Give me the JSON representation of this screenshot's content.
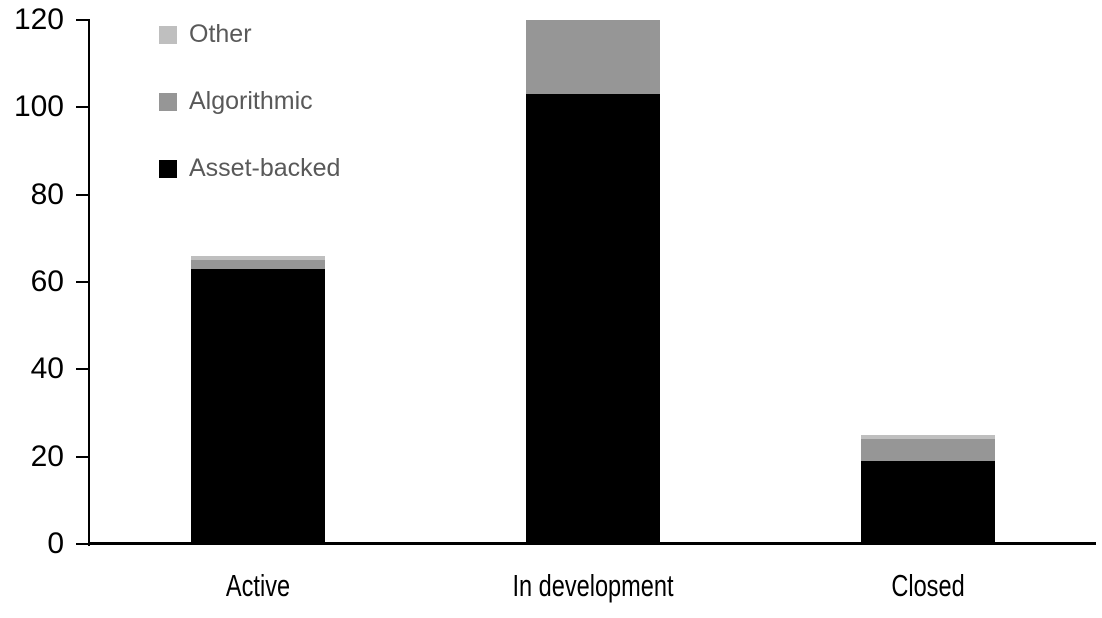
{
  "chart_data": {
    "type": "bar",
    "stacked": true,
    "title": "",
    "xlabel": "",
    "ylabel": "",
    "categories": [
      "Active",
      "In development",
      "Closed"
    ],
    "series": [
      {
        "name": "Asset-backed",
        "color": "#000000",
        "values": [
          63,
          103,
          19
        ]
      },
      {
        "name": "Algorithmic",
        "color": "#969696",
        "values": [
          2,
          17,
          5
        ]
      },
      {
        "name": "Other",
        "color": "#BFBFBF",
        "values": [
          1,
          0,
          1
        ]
      }
    ],
    "totals": [
      66,
      120,
      25
    ],
    "ylim": [
      0,
      120
    ],
    "yticks": [
      0,
      20,
      40,
      60,
      80,
      100,
      120
    ],
    "grid": false,
    "legend_position": "top-left",
    "legend_order_top_to_bottom": [
      "Other",
      "Algorithmic",
      "Asset-backed"
    ]
  },
  "colors": {
    "background": "#FFFFFF",
    "axis_line": "#000000",
    "tick_label_text": "#000000",
    "category_label_text": "#000000",
    "legend_text": "#595959"
  }
}
